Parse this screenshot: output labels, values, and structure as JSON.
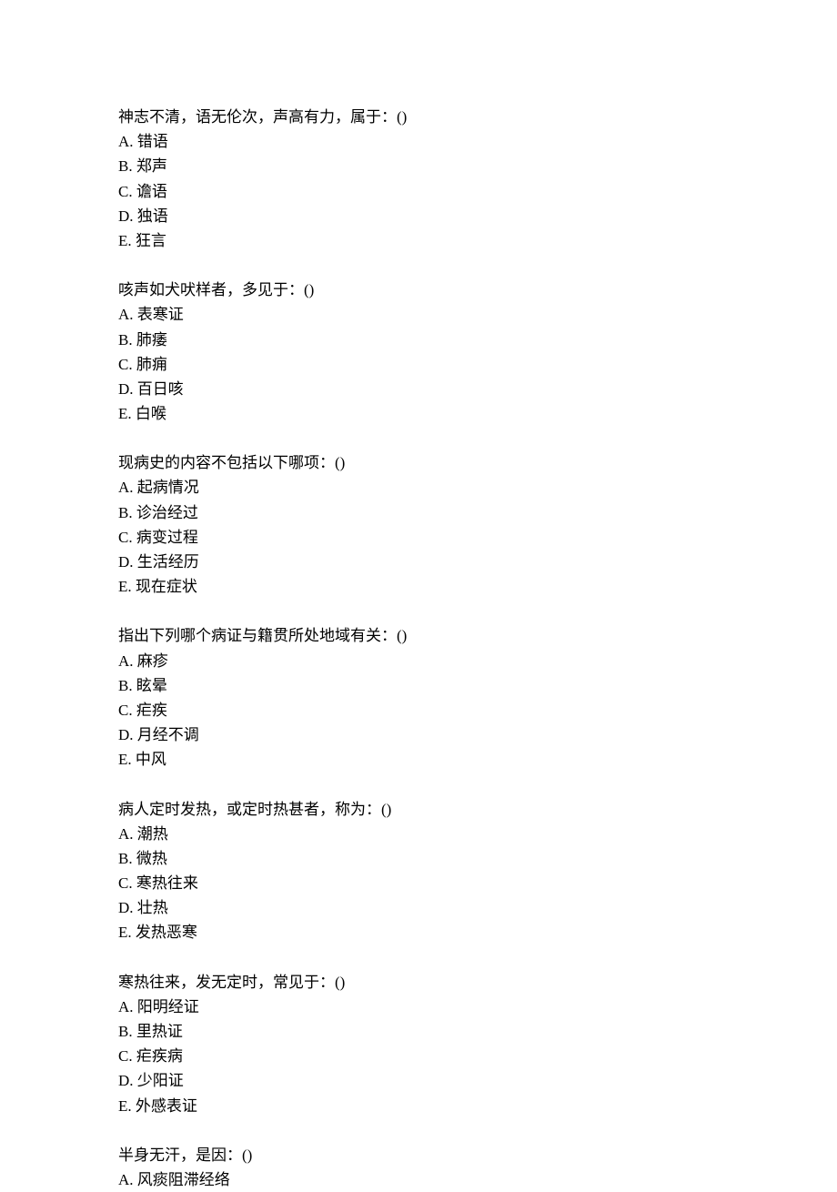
{
  "font_family": "SimSun",
  "font_size_pt": 13,
  "text_color": "#000000",
  "background_color": "#ffffff",
  "line_height": 1.6,
  "questions": [
    {
      "stem": "神志不清，语无伦次，声高有力，属于：()",
      "options": {
        "A": "A. 错语",
        "B": "B. 郑声",
        "C": "C. 谵语",
        "D": "D. 独语",
        "E": "E. 狂言"
      }
    },
    {
      "stem": "咳声如犬吠样者，多见于：()",
      "options": {
        "A": "A. 表寒证",
        "B": "B. 肺痿",
        "C": "C. 肺痈",
        "D": "D. 百日咳",
        "E": "E. 白喉"
      }
    },
    {
      "stem": "现病史的内容不包括以下哪项：()",
      "options": {
        "A": "A. 起病情况",
        "B": "B. 诊治经过",
        "C": "C. 病变过程",
        "D": "D. 生活经历",
        "E": "E. 现在症状"
      }
    },
    {
      "stem": "指出下列哪个病证与籍贯所处地域有关：()",
      "options": {
        "A": "A. 麻疹",
        "B": "B. 眩晕",
        "C": "C. 疟疾",
        "D": "D. 月经不调",
        "E": "E. 中风"
      }
    },
    {
      "stem": "病人定时发热，或定时热甚者，称为：()",
      "options": {
        "A": "A. 潮热",
        "B": "B. 微热",
        "C": "C. 寒热往来",
        "D": "D. 壮热",
        "E": "E. 发热恶寒"
      }
    },
    {
      "stem": "寒热往来，发无定时，常见于：()",
      "options": {
        "A": "A. 阳明经证",
        "B": "B. 里热证",
        "C": "C. 疟疾病",
        "D": "D. 少阳证",
        "E": "E. 外感表证"
      }
    },
    {
      "stem": "半身无汗，是因：()",
      "options": {
        "A": "A. 风痰阻滞经络"
      }
    }
  ]
}
